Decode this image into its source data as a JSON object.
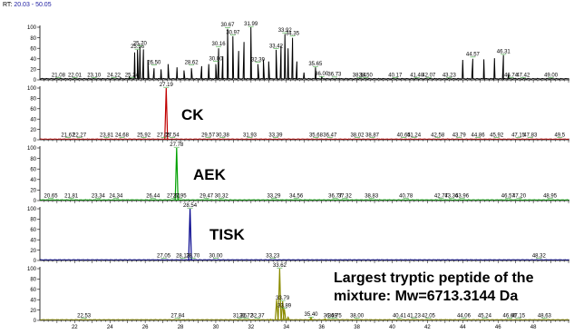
{
  "range_label": "RT:",
  "range_value": "20.03 - 50.05",
  "chart_data": {
    "type": "line",
    "x_range": [
      20.03,
      50.05
    ],
    "x_ticks": [
      22,
      24,
      26,
      28,
      30,
      32,
      34,
      36,
      38,
      40,
      42,
      44,
      46,
      48
    ],
    "y_ticks": [
      0,
      20,
      40,
      60,
      80,
      100
    ],
    "grid": false,
    "panels": [
      {
        "id": "tic",
        "name": "",
        "color": "#000000",
        "labels": [
          {
            "x": 21.08,
            "y": 3,
            "t": "21.08"
          },
          {
            "x": 22.01,
            "y": 3,
            "t": "22.01"
          },
          {
            "x": 23.1,
            "y": 3,
            "t": "23.10"
          },
          {
            "x": 24.22,
            "y": 3,
            "t": "24.22"
          },
          {
            "x": 25.24,
            "y": 3,
            "t": "25.24"
          },
          {
            "x": 25.56,
            "y": 57,
            "t": "25.56"
          },
          {
            "x": 25.7,
            "y": 63,
            "t": "25.70"
          },
          {
            "x": 26.5,
            "y": 27,
            "t": "26.50"
          },
          {
            "x": 28.62,
            "y": 27,
            "t": "28.62"
          },
          {
            "x": 30.0,
            "y": 34,
            "t": "30.00"
          },
          {
            "x": 30.16,
            "y": 62,
            "t": "30.16"
          },
          {
            "x": 30.67,
            "y": 98,
            "t": "30.67"
          },
          {
            "x": 30.97,
            "y": 84,
            "t": "30.97"
          },
          {
            "x": 31.99,
            "y": 100,
            "t": "31.99"
          },
          {
            "x": 32.39,
            "y": 32,
            "t": "32.39"
          },
          {
            "x": 33.42,
            "y": 58,
            "t": "33.42"
          },
          {
            "x": 33.92,
            "y": 88,
            "t": "33.92"
          },
          {
            "x": 34.35,
            "y": 82,
            "t": "34.35"
          },
          {
            "x": 35.65,
            "y": 24,
            "t": "35.65"
          },
          {
            "x": 36.0,
            "y": 5,
            "t": "36.00"
          },
          {
            "x": 36.73,
            "y": 4,
            "t": "36.73"
          },
          {
            "x": 38.14,
            "y": 3,
            "t": "38.14"
          },
          {
            "x": 38.5,
            "y": 3,
            "t": "38.50"
          },
          {
            "x": 40.17,
            "y": 3,
            "t": "40.17"
          },
          {
            "x": 41.4,
            "y": 3,
            "t": "41.40"
          },
          {
            "x": 42.07,
            "y": 3,
            "t": "42.07"
          },
          {
            "x": 43.23,
            "y": 3,
            "t": "43.23"
          },
          {
            "x": 44.57,
            "y": 42,
            "t": "44.57"
          },
          {
            "x": 46.31,
            "y": 47,
            "t": "46.31"
          },
          {
            "x": 46.74,
            "y": 3,
            "t": "46.74"
          },
          {
            "x": 47.42,
            "y": 3,
            "t": "47.42"
          },
          {
            "x": 49.0,
            "y": 3,
            "t": "49.00"
          }
        ],
        "peaks": [
          {
            "x": 24.6,
            "y": 4
          },
          {
            "x": 25.1,
            "y": 6
          },
          {
            "x": 25.4,
            "y": 52
          },
          {
            "x": 25.56,
            "y": 57
          },
          {
            "x": 25.7,
            "y": 63
          },
          {
            "x": 25.9,
            "y": 58
          },
          {
            "x": 26.15,
            "y": 38
          },
          {
            "x": 26.5,
            "y": 22
          },
          {
            "x": 26.9,
            "y": 20
          },
          {
            "x": 27.3,
            "y": 30
          },
          {
            "x": 27.8,
            "y": 24
          },
          {
            "x": 28.2,
            "y": 18
          },
          {
            "x": 28.62,
            "y": 22
          },
          {
            "x": 29.2,
            "y": 26
          },
          {
            "x": 29.6,
            "y": 30
          },
          {
            "x": 30.0,
            "y": 30
          },
          {
            "x": 30.16,
            "y": 60
          },
          {
            "x": 30.4,
            "y": 45
          },
          {
            "x": 30.67,
            "y": 97
          },
          {
            "x": 30.97,
            "y": 83
          },
          {
            "x": 31.3,
            "y": 55
          },
          {
            "x": 31.6,
            "y": 72
          },
          {
            "x": 31.99,
            "y": 100
          },
          {
            "x": 32.39,
            "y": 30
          },
          {
            "x": 32.7,
            "y": 38
          },
          {
            "x": 33.0,
            "y": 35
          },
          {
            "x": 33.42,
            "y": 57
          },
          {
            "x": 33.7,
            "y": 65
          },
          {
            "x": 33.92,
            "y": 87
          },
          {
            "x": 34.1,
            "y": 60
          },
          {
            "x": 34.35,
            "y": 80
          },
          {
            "x": 34.6,
            "y": 35
          },
          {
            "x": 35.0,
            "y": 14
          },
          {
            "x": 35.65,
            "y": 24
          },
          {
            "x": 36.0,
            "y": 5
          },
          {
            "x": 37.0,
            "y": 3
          },
          {
            "x": 43.6,
            "y": 2
          },
          {
            "x": 44.0,
            "y": 38
          },
          {
            "x": 44.57,
            "y": 40
          },
          {
            "x": 45.2,
            "y": 39
          },
          {
            "x": 45.8,
            "y": 41
          },
          {
            "x": 46.31,
            "y": 47
          },
          {
            "x": 46.6,
            "y": 10
          },
          {
            "x": 47.0,
            "y": 3
          },
          {
            "x": 50.0,
            "y": 2
          }
        ]
      },
      {
        "id": "ck",
        "name": "CK",
        "color": "#c00000",
        "labels": [
          {
            "x": 21.62,
            "y": 3,
            "t": "21.62"
          },
          {
            "x": 22.27,
            "y": 3,
            "t": "22.27"
          },
          {
            "x": 23.81,
            "y": 3,
            "t": "23.81"
          },
          {
            "x": 24.68,
            "y": 3,
            "t": "24.68"
          },
          {
            "x": 25.92,
            "y": 3,
            "t": "25.92"
          },
          {
            "x": 27.05,
            "y": 3,
            "t": "27.05"
          },
          {
            "x": 27.19,
            "y": 100,
            "t": "27.19"
          },
          {
            "x": 27.54,
            "y": 3,
            "t": "27.54"
          },
          {
            "x": 29.57,
            "y": 3,
            "t": "29.57"
          },
          {
            "x": 30.38,
            "y": 3,
            "t": "30.38"
          },
          {
            "x": 31.93,
            "y": 3,
            "t": "31.93"
          },
          {
            "x": 33.39,
            "y": 3,
            "t": "33.39"
          },
          {
            "x": 35.68,
            "y": 3,
            "t": "35.68"
          },
          {
            "x": 36.47,
            "y": 3,
            "t": "36.47"
          },
          {
            "x": 38.02,
            "y": 3,
            "t": "38.02"
          },
          {
            "x": 38.87,
            "y": 3,
            "t": "38.87"
          },
          {
            "x": 40.65,
            "y": 3,
            "t": "40.65"
          },
          {
            "x": 41.24,
            "y": 3,
            "t": "41.24"
          },
          {
            "x": 42.58,
            "y": 3,
            "t": "42.58"
          },
          {
            "x": 43.79,
            "y": 3,
            "t": "43.79"
          },
          {
            "x": 44.86,
            "y": 3,
            "t": "44.86"
          },
          {
            "x": 45.92,
            "y": 3,
            "t": "45.92"
          },
          {
            "x": 47.15,
            "y": 3,
            "t": "47.15"
          },
          {
            "x": 47.83,
            "y": 3,
            "t": "47.83"
          },
          {
            "x": 49.5,
            "y": 3,
            "t": "49.5"
          }
        ],
        "peaks": [
          {
            "x": 27.19,
            "y": 100
          }
        ]
      },
      {
        "id": "aek",
        "name": "AEK",
        "color": "#00a000",
        "labels": [
          {
            "x": 20.65,
            "y": 3,
            "t": "20.65"
          },
          {
            "x": 21.81,
            "y": 3,
            "t": "21.81"
          },
          {
            "x": 23.34,
            "y": 3,
            "t": "23.34"
          },
          {
            "x": 24.34,
            "y": 3,
            "t": "24.34"
          },
          {
            "x": 26.44,
            "y": 3,
            "t": "26.44"
          },
          {
            "x": 27.61,
            "y": 3,
            "t": "27.61"
          },
          {
            "x": 27.78,
            "y": 100,
            "t": "27.78"
          },
          {
            "x": 27.95,
            "y": 3,
            "t": "27.95"
          },
          {
            "x": 29.47,
            "y": 3,
            "t": "29.47"
          },
          {
            "x": 30.32,
            "y": 3,
            "t": "30.32"
          },
          {
            "x": 33.29,
            "y": 3,
            "t": "33.29"
          },
          {
            "x": 34.56,
            "y": 3,
            "t": "34.56"
          },
          {
            "x": 36.77,
            "y": 3,
            "t": "36.77"
          },
          {
            "x": 37.32,
            "y": 3,
            "t": "37.32"
          },
          {
            "x": 38.83,
            "y": 3,
            "t": "38.83"
          },
          {
            "x": 40.78,
            "y": 3,
            "t": "40.78"
          },
          {
            "x": 42.77,
            "y": 3,
            "t": "42.77"
          },
          {
            "x": 43.36,
            "y": 3,
            "t": "43.36"
          },
          {
            "x": 43.96,
            "y": 3,
            "t": "43.96"
          },
          {
            "x": 46.57,
            "y": 3,
            "t": "46.57"
          },
          {
            "x": 47.2,
            "y": 3,
            "t": "47.20"
          },
          {
            "x": 48.95,
            "y": 3,
            "t": "48.95"
          }
        ],
        "peaks": [
          {
            "x": 27.78,
            "y": 100
          }
        ]
      },
      {
        "id": "tisk",
        "name": "TISK",
        "color": "#00008b",
        "labels": [
          {
            "x": 27.05,
            "y": 3,
            "t": "27.05"
          },
          {
            "x": 28.13,
            "y": 3,
            "t": "28.13"
          },
          {
            "x": 28.54,
            "y": 100,
            "t": "28.54"
          },
          {
            "x": 28.7,
            "y": 3,
            "t": "28.70"
          },
          {
            "x": 30.0,
            "y": 3,
            "t": "30.00"
          },
          {
            "x": 33.23,
            "y": 3,
            "t": "33.23"
          },
          {
            "x": 48.32,
            "y": 3,
            "t": "48.32"
          }
        ],
        "peaks": [
          {
            "x": 28.54,
            "y": 100
          }
        ]
      },
      {
        "id": "largest",
        "name": "Largest tryptic peptide of the mixture: Mw=6713.3144 Da",
        "color": "#8b8b00",
        "labels": [
          {
            "x": 22.53,
            "y": 3,
            "t": "22.53"
          },
          {
            "x": 27.84,
            "y": 3,
            "t": "27.84"
          },
          {
            "x": 31.36,
            "y": 3,
            "t": "31.36"
          },
          {
            "x": 31.72,
            "y": 3,
            "t": "31.72"
          },
          {
            "x": 32.37,
            "y": 3,
            "t": "32.37"
          },
          {
            "x": 33.62,
            "y": 100,
            "t": "33.62"
          },
          {
            "x": 33.79,
            "y": 37,
            "t": "33.79"
          },
          {
            "x": 33.89,
            "y": 22,
            "t": "33.89"
          },
          {
            "x": 35.4,
            "y": 5,
            "t": "35.40"
          },
          {
            "x": 36.49,
            "y": 3,
            "t": "36.49"
          },
          {
            "x": 36.75,
            "y": 3,
            "t": "36.75"
          },
          {
            "x": 38.0,
            "y": 3,
            "t": "38.00"
          },
          {
            "x": 40.41,
            "y": 3,
            "t": "40.41"
          },
          {
            "x": 41.23,
            "y": 3,
            "t": "41.23"
          },
          {
            "x": 42.05,
            "y": 3,
            "t": "42.05"
          },
          {
            "x": 44.06,
            "y": 3,
            "t": "44.06"
          },
          {
            "x": 45.24,
            "y": 3,
            "t": "45.24"
          },
          {
            "x": 46.66,
            "y": 3,
            "t": "46.66"
          },
          {
            "x": 47.15,
            "y": 3,
            "t": "47.15"
          },
          {
            "x": 48.63,
            "y": 3,
            "t": "48.63"
          }
        ],
        "peaks": [
          {
            "x": 33.1,
            "y": 2
          },
          {
            "x": 33.45,
            "y": 40
          },
          {
            "x": 33.62,
            "y": 100
          },
          {
            "x": 33.79,
            "y": 37
          },
          {
            "x": 33.89,
            "y": 22
          },
          {
            "x": 34.1,
            "y": 6
          },
          {
            "x": 35.4,
            "y": 5
          },
          {
            "x": 36.2,
            "y": 3
          }
        ]
      }
    ]
  }
}
